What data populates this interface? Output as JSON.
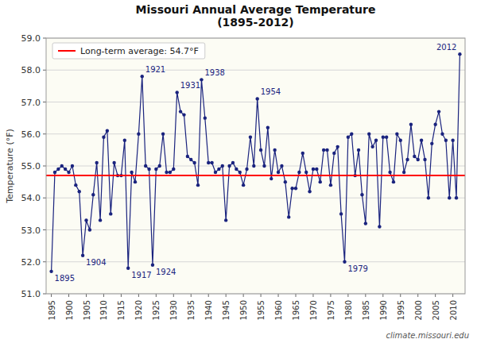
{
  "chart_data": {
    "type": "line",
    "title": "Missouri Annual Average Temperature\n(1895-2012)",
    "ylabel": "Temperature (°F)",
    "x": [
      1895,
      1896,
      1897,
      1898,
      1899,
      1900,
      1901,
      1902,
      1903,
      1904,
      1905,
      1906,
      1907,
      1908,
      1909,
      1910,
      1911,
      1912,
      1913,
      1914,
      1915,
      1916,
      1917,
      1918,
      1919,
      1920,
      1921,
      1922,
      1923,
      1924,
      1925,
      1926,
      1927,
      1928,
      1929,
      1930,
      1931,
      1932,
      1933,
      1934,
      1935,
      1936,
      1937,
      1938,
      1939,
      1940,
      1941,
      1942,
      1943,
      1944,
      1945,
      1946,
      1947,
      1948,
      1949,
      1950,
      1951,
      1952,
      1953,
      1954,
      1955,
      1956,
      1957,
      1958,
      1959,
      1960,
      1961,
      1962,
      1963,
      1964,
      1965,
      1966,
      1967,
      1968,
      1969,
      1970,
      1971,
      1972,
      1973,
      1974,
      1975,
      1976,
      1977,
      1978,
      1979,
      1980,
      1981,
      1982,
      1983,
      1984,
      1985,
      1986,
      1987,
      1988,
      1989,
      1990,
      1991,
      1992,
      1993,
      1994,
      1995,
      1996,
      1997,
      1998,
      1999,
      2000,
      2001,
      2002,
      2003,
      2004,
      2005,
      2006,
      2007,
      2008,
      2009,
      2010,
      2011,
      2012
    ],
    "values": [
      51.7,
      54.8,
      54.9,
      55.0,
      54.9,
      54.8,
      55.0,
      54.4,
      54.2,
      52.2,
      53.3,
      53.0,
      54.1,
      55.1,
      53.3,
      55.9,
      56.1,
      53.5,
      55.1,
      54.7,
      54.7,
      55.8,
      51.8,
      54.8,
      54.5,
      56.0,
      57.8,
      55.0,
      54.9,
      51.9,
      54.9,
      55.0,
      56.0,
      54.8,
      54.8,
      54.9,
      57.3,
      56.7,
      56.6,
      55.3,
      55.2,
      55.1,
      54.4,
      57.7,
      56.5,
      55.1,
      55.1,
      54.8,
      54.9,
      55.0,
      53.3,
      55.0,
      55.1,
      54.9,
      54.8,
      54.4,
      54.9,
      55.9,
      55.0,
      57.1,
      55.5,
      55.0,
      56.2,
      54.6,
      55.5,
      54.8,
      55.0,
      54.5,
      53.4,
      54.3,
      54.3,
      54.8,
      55.4,
      54.8,
      54.2,
      54.9,
      54.9,
      54.5,
      55.5,
      55.5,
      54.4,
      55.4,
      55.6,
      53.5,
      52.0,
      55.9,
      56.0,
      54.7,
      55.5,
      54.1,
      53.2,
      56.0,
      55.6,
      55.8,
      53.1,
      55.9,
      55.9,
      54.8,
      54.5,
      56.0,
      55.8,
      54.8,
      55.2,
      56.3,
      55.3,
      55.2,
      55.8,
      55.2,
      54.0,
      55.7,
      56.3,
      56.7,
      56.0,
      55.8,
      54.0,
      55.8,
      54.0,
      58.5
    ],
    "color": "#1a237e",
    "marker": "circle",
    "reference_line": {
      "value": 54.7,
      "label": "Long-term average: 54.7°F",
      "color": "#FF0000"
    },
    "legend": "top-left",
    "grid": true,
    "xlim": [
      1893.5,
      2013.5
    ],
    "ylim": [
      51.0,
      59.0
    ],
    "xticks": [
      1895,
      1900,
      1905,
      1910,
      1915,
      1920,
      1925,
      1930,
      1935,
      1940,
      1945,
      1950,
      1955,
      1960,
      1965,
      1970,
      1975,
      1980,
      1985,
      1990,
      1995,
      2000,
      2005,
      2010
    ],
    "yticks": [
      {
        "value": 51.0,
        "label": "51.0"
      },
      {
        "value": 52.0,
        "label": "52.0"
      },
      {
        "value": 53.0,
        "label": "53.0"
      },
      {
        "value": 54.0,
        "label": "54.0"
      },
      {
        "value": 55.0,
        "label": "55.0"
      },
      {
        "value": 56.0,
        "label": "56.0"
      },
      {
        "value": 57.0,
        "label": "57.0"
      },
      {
        "value": 58.0,
        "label": "58.0"
      },
      {
        "value": 59.0,
        "label": "59.0"
      }
    ],
    "annotations": [
      {
        "x": 1895,
        "label": "1895"
      },
      {
        "x": 1904,
        "label": "1904"
      },
      {
        "x": 1917,
        "label": "1917"
      },
      {
        "x": 1921,
        "label": "1921"
      },
      {
        "x": 1924,
        "label": "1924"
      },
      {
        "x": 1931,
        "label": "1931"
      },
      {
        "x": 1938,
        "label": "1938"
      },
      {
        "x": 1954,
        "label": "1954"
      },
      {
        "x": 1979,
        "label": "1979"
      },
      {
        "x": 2012,
        "label": "2012"
      }
    ],
    "watermark": "climate.missouri.edu"
  }
}
